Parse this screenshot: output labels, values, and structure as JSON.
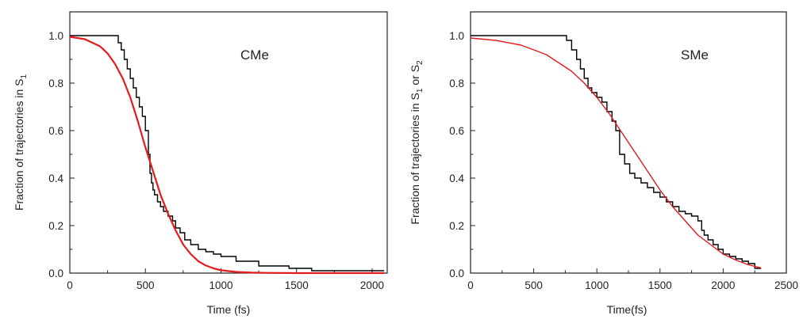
{
  "chart_data": [
    {
      "type": "line",
      "annotation": "CMe",
      "xlabel": "Time (fs)",
      "ylabel_main": "Fraction of trajectories in S",
      "ylabel_sub": "1",
      "xlim": [
        0,
        2100
      ],
      "ylim": [
        0,
        1.1
      ],
      "xticks": [
        0,
        500,
        1000,
        1500,
        2000
      ],
      "yticks": [
        0.0,
        0.2,
        0.4,
        0.6,
        0.8,
        1.0
      ],
      "xtick_labels": [
        "0",
        "500",
        "1000",
        "1500",
        "2000"
      ],
      "ytick_labels": [
        "0.0",
        "0.2",
        "0.4",
        "0.6",
        "0.8",
        "1.0"
      ],
      "series": [
        {
          "kind": "step",
          "color": "#000000",
          "x": [
            0,
            300,
            320,
            340,
            360,
            380,
            400,
            420,
            440,
            460,
            480,
            500,
            520,
            530,
            540,
            550,
            560,
            580,
            600,
            620,
            650,
            680,
            700,
            730,
            760,
            800,
            850,
            900,
            950,
            1000,
            1100,
            1250,
            1450,
            1600,
            2080
          ],
          "y": [
            1.0,
            1.0,
            0.97,
            0.94,
            0.9,
            0.86,
            0.82,
            0.78,
            0.74,
            0.7,
            0.66,
            0.6,
            0.5,
            0.42,
            0.38,
            0.35,
            0.33,
            0.3,
            0.28,
            0.26,
            0.24,
            0.22,
            0.19,
            0.17,
            0.14,
            0.12,
            0.1,
            0.09,
            0.08,
            0.07,
            0.05,
            0.03,
            0.02,
            0.01,
            0.01
          ]
        },
        {
          "kind": "sigmoid",
          "color": "#e41a1c",
          "x": [
            0,
            100,
            200,
            250,
            300,
            350,
            400,
            450,
            500,
            550,
            600,
            650,
            700,
            750,
            800,
            850,
            900,
            950,
            1000,
            1100,
            1200,
            1300,
            1500,
            2080
          ],
          "y": [
            0.995,
            0.985,
            0.955,
            0.925,
            0.88,
            0.82,
            0.74,
            0.64,
            0.53,
            0.43,
            0.33,
            0.25,
            0.18,
            0.12,
            0.08,
            0.05,
            0.032,
            0.02,
            0.012,
            0.005,
            0.002,
            0.001,
            0.0,
            0.0
          ]
        }
      ]
    },
    {
      "type": "line",
      "annotation": "SMe",
      "xlabel": "Time(fs)",
      "ylabel_main": "Fraction of trajectories in S",
      "ylabel_sub": "1",
      "ylabel_mid": " or S",
      "ylabel_sub2": "2",
      "xlim": [
        0,
        2500
      ],
      "ylim": [
        0,
        1.1
      ],
      "xticks": [
        0,
        500,
        1000,
        1500,
        2000,
        2500
      ],
      "yticks": [
        0.0,
        0.2,
        0.4,
        0.6,
        0.8,
        1.0
      ],
      "xtick_labels": [
        "0",
        "500",
        "1000",
        "1500",
        "2000",
        "2500"
      ],
      "ytick_labels": [
        "0.0",
        "0.2",
        "0.4",
        "0.6",
        "0.8",
        "1.0"
      ],
      "series": [
        {
          "kind": "step",
          "color": "#000000",
          "x": [
            0,
            700,
            760,
            800,
            840,
            870,
            900,
            930,
            960,
            1000,
            1040,
            1080,
            1120,
            1150,
            1180,
            1220,
            1260,
            1300,
            1350,
            1400,
            1450,
            1500,
            1550,
            1600,
            1650,
            1700,
            1750,
            1800,
            1830,
            1850,
            1880,
            1920,
            1960,
            2000,
            2050,
            2100,
            2150,
            2200,
            2250,
            2300
          ],
          "y": [
            1.0,
            1.0,
            0.98,
            0.94,
            0.9,
            0.86,
            0.82,
            0.78,
            0.76,
            0.74,
            0.72,
            0.68,
            0.64,
            0.6,
            0.5,
            0.46,
            0.42,
            0.4,
            0.38,
            0.36,
            0.34,
            0.32,
            0.3,
            0.28,
            0.26,
            0.25,
            0.24,
            0.22,
            0.18,
            0.16,
            0.14,
            0.12,
            0.1,
            0.08,
            0.07,
            0.06,
            0.05,
            0.04,
            0.02,
            0.02
          ]
        },
        {
          "kind": "sigmoid",
          "color": "#e41a1c",
          "x": [
            0,
            200,
            400,
            600,
            800,
            900,
            1000,
            1100,
            1200,
            1300,
            1400,
            1500,
            1600,
            1700,
            1800,
            1900,
            2000,
            2100,
            2200,
            2300
          ],
          "y": [
            0.99,
            0.98,
            0.96,
            0.92,
            0.85,
            0.8,
            0.74,
            0.67,
            0.59,
            0.51,
            0.43,
            0.35,
            0.28,
            0.22,
            0.16,
            0.12,
            0.08,
            0.055,
            0.035,
            0.022
          ]
        }
      ]
    }
  ]
}
